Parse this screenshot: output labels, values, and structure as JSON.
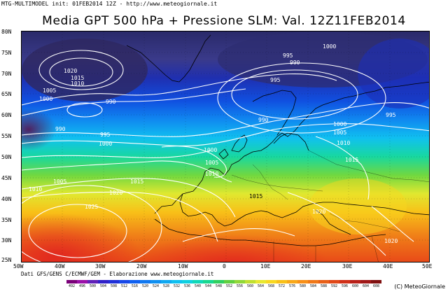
{
  "header": {
    "source_line": "MTG-MULTIMODEL  init: 01FEB2014 12Z  -  http://www.meteogiornale.it",
    "title": "Media GPT 500 hPa + Pressione SLM: Val. 12Z11FEB2014"
  },
  "map": {
    "lat_labels": [
      "80N",
      "75N",
      "70N",
      "65N",
      "60N",
      "55N",
      "50N",
      "45N",
      "40N",
      "35N",
      "30N",
      "25N"
    ],
    "lon_labels": [
      "50W",
      "40W",
      "30W",
      "20W",
      "10W",
      "0",
      "10E",
      "20E",
      "30E",
      "40E",
      "50E"
    ],
    "isobar_labels": [
      "1020",
      "1015",
      "1010",
      "1005",
      "1000",
      "990",
      "990",
      "995",
      "1000",
      "995",
      "990",
      "1000",
      "995",
      "990",
      "1000",
      "1005",
      "1010",
      "1000",
      "1005",
      "1010",
      "995",
      "1005",
      "1010",
      "1015",
      "1020",
      "1025",
      "1015",
      "1020",
      "1015",
      "1020"
    ]
  },
  "credits": "Dati GFS/GENS C/ECMWF/GEM - Elaborazione www.meteogiornale.it",
  "copyright": "(C) MeteoGiornale",
  "scale": {
    "values": [
      "492",
      "496",
      "500",
      "504",
      "508",
      "512",
      "516",
      "520",
      "524",
      "528",
      "532",
      "536",
      "540",
      "544",
      "548",
      "552",
      "556",
      "560",
      "564",
      "568",
      "572",
      "576",
      "580",
      "584",
      "588",
      "592",
      "596",
      "600",
      "604",
      "608"
    ],
    "colors": [
      "#7a0078",
      "#9a10a8",
      "#6020b8",
      "#3020c8",
      "#2030d8",
      "#1848e8",
      "#1060f0",
      "#1078f0",
      "#1090f0",
      "#10a8f0",
      "#10c0f0",
      "#10d0e0",
      "#10d8b8",
      "#18d890",
      "#30d060",
      "#60d040",
      "#90d838",
      "#c0e030",
      "#e8e830",
      "#f8d820",
      "#f8c018",
      "#f8a818",
      "#f89018",
      "#f07818",
      "#e86018",
      "#e04818",
      "#d03018",
      "#b82018",
      "#a01818",
      "#801010"
    ]
  }
}
